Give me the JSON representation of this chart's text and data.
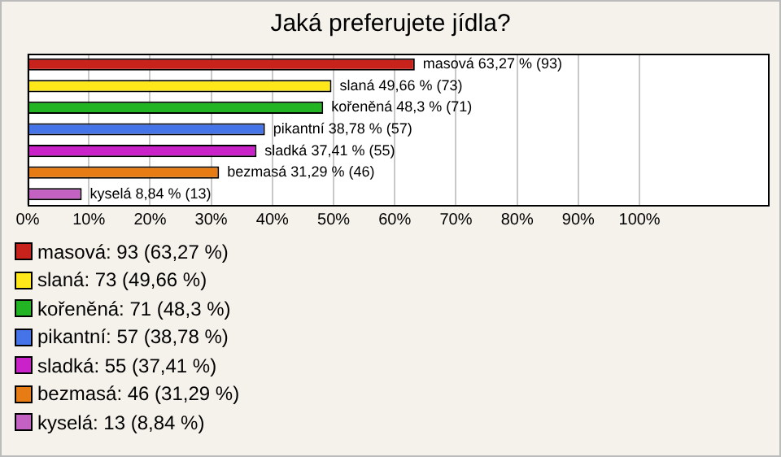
{
  "chart_data": {
    "type": "bar",
    "orientation": "horizontal",
    "title": "Jaká preferujete jídla?",
    "categories": [
      null,
      null,
      null,
      null,
      null,
      null,
      null
    ],
    "values": [
      63.27,
      49.66,
      48.3,
      38.78,
      37.41,
      31.29,
      8.84
    ],
    "colors": [
      "#c8221c",
      "#ffe81a",
      "#22b422",
      "#4474e8",
      "#c822c8",
      "#e87c14",
      "#c462c4"
    ],
    "value_labels": [
      "masová 63,27 % (93)",
      "slaná 49,66 % (73)",
      "kořeněná 48,3 % (71)",
      "pikantní 38,78 % (57)",
      "sladká 37,41 % (55)",
      "bezmasá 31,29 % (46)",
      "kyselá 8,84 % (13)"
    ],
    "xlim": [
      0,
      121
    ],
    "xticks": [
      {
        "value": 0,
        "label": "0%"
      },
      {
        "value": 10,
        "label": "10%"
      },
      {
        "value": 20,
        "label": "20%"
      },
      {
        "value": 30,
        "label": "30%"
      },
      {
        "value": 40,
        "label": "40%"
      },
      {
        "value": 50,
        "label": "50%"
      },
      {
        "value": 60,
        "label": "60%"
      },
      {
        "value": 70,
        "label": "70%"
      },
      {
        "value": 80,
        "label": "80%"
      },
      {
        "value": 90,
        "label": "90%"
      },
      {
        "value": 100,
        "label": "100%"
      }
    ],
    "tick_labels": "x",
    "grid": "x",
    "annotations": [
      "masová: 93 (63,27 %)",
      "slaná: 73 (49,66 %)",
      "kořeněná: 71 (48,3 %)",
      "pikantní: 57 (38,78 %)",
      "sladká: 55 (37,41 %)",
      "bezmasá: 46 (31,29 %)",
      "kyselá: 13 (8,84 %)"
    ]
  }
}
